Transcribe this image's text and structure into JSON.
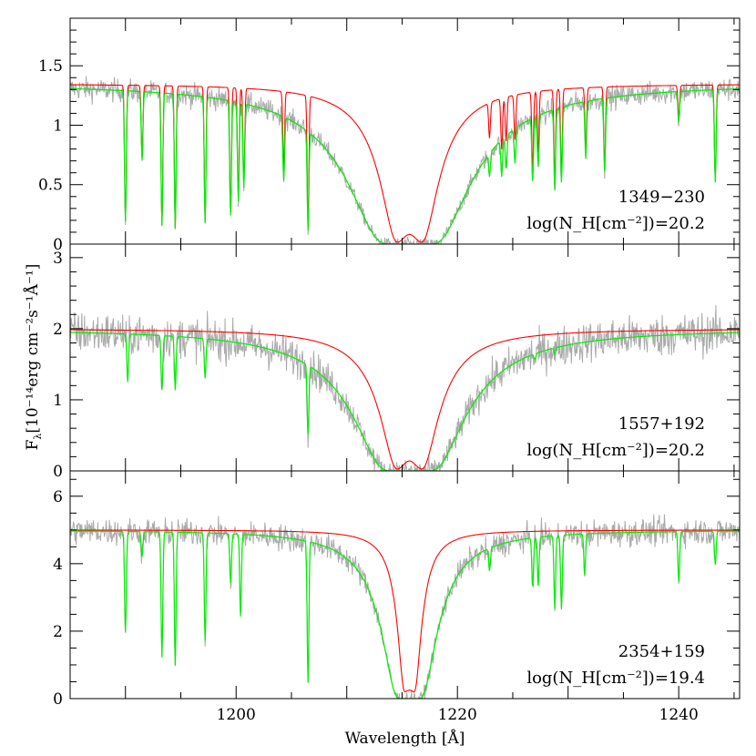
{
  "chart_data": {
    "type": "line",
    "xlabel": "Wavelength [Å]",
    "ylabel_parts": {
      "f": "F",
      "lam": "λ",
      "rest": "[10⁻¹⁴erg cm⁻²s⁻¹Å⁻¹]"
    },
    "xlim": [
      1185,
      1245.5
    ],
    "xticks": [
      1200,
      1220,
      1240
    ],
    "colors": {
      "data": "#aaaaaa",
      "model_red": "#ff0000",
      "model_green": "#00ee00"
    },
    "panels": [
      {
        "object": "1349−230",
        "label": "log(N_H[cm⁻²])=20.2",
        "label_parts": {
          "pre": "log(N",
          "sub": "H",
          "mid": "[cm",
          "sup": "-2",
          "post": "])=20.2"
        },
        "ylim": [
          0,
          1.9
        ],
        "yticks": [
          0,
          0.5,
          1,
          1.5
        ],
        "ytick_labels": [
          "0",
          "0.5",
          "1",
          "1.5"
        ],
        "yminor": 0.1,
        "continuum": 1.35,
        "noise": 0.05,
        "red_damping": 6.7,
        "green_damping": 30,
        "red_floor": 0.06,
        "red_has_lines": true,
        "lines": [
          [
            1190.0,
            0.85
          ],
          [
            1191.5,
            0.45
          ],
          [
            1193.3,
            0.88
          ],
          [
            1194.5,
            0.9
          ],
          [
            1197.2,
            0.86
          ],
          [
            1199.5,
            0.8
          ],
          [
            1200.2,
            0.7
          ],
          [
            1200.7,
            0.6
          ],
          [
            1204.3,
            0.5
          ],
          [
            1206.5,
            0.88
          ],
          [
            1222.9,
            0.25
          ],
          [
            1224.0,
            0.35
          ],
          [
            1224.4,
            0.3
          ],
          [
            1225.2,
            0.3
          ],
          [
            1226.8,
            0.5
          ],
          [
            1227.3,
            0.4
          ],
          [
            1228.8,
            0.6
          ],
          [
            1229.4,
            0.55
          ],
          [
            1231.6,
            0.4
          ],
          [
            1233.3,
            0.5
          ],
          [
            1240.0,
            0.2
          ],
          [
            1243.3,
            0.6
          ]
        ]
      },
      {
        "object": "1557+192",
        "label": "log(N_H[cm⁻²])=20.2",
        "label_parts": {
          "pre": "log(N",
          "sub": "H",
          "mid": "[cm",
          "sup": "-2",
          "post": "])=20.2"
        },
        "ylim": [
          0,
          3.19
        ],
        "yticks": [
          0,
          1,
          2,
          3
        ],
        "ytick_labels": [
          "0",
          "1",
          "2",
          "3"
        ],
        "yminor": 0.2,
        "continuum": 2.0,
        "noise": 0.15,
        "red_damping": 6.7,
        "green_damping": 25,
        "red_floor": 0.07,
        "red_has_lines": false,
        "lines": [
          [
            1190.2,
            0.35
          ],
          [
            1193.3,
            0.4
          ],
          [
            1194.5,
            0.4
          ],
          [
            1197.2,
            0.3
          ],
          [
            1206.5,
            0.65
          ],
          [
            1227.0,
            0.05
          ],
          [
            1228.8,
            0.05
          ]
        ]
      },
      {
        "object": "2354+159",
        "label": "log(N_H[cm⁻²])=19.4",
        "label_parts": {
          "pre": "log(N",
          "sub": "H",
          "mid": "[cm",
          "sup": "-2",
          "post": "])=19.4"
        },
        "ylim": [
          0,
          6.75
        ],
        "yticks": [
          0,
          2,
          4,
          6
        ],
        "ytick_labels": [
          "0",
          "2",
          "4",
          "6"
        ],
        "yminor": 0.5,
        "continuum": 5.0,
        "noise": 0.2,
        "red_damping": 1.06,
        "green_damping": 6,
        "red_floor": 0.05,
        "red_has_lines": false,
        "lines": [
          [
            1190.0,
            0.6
          ],
          [
            1191.5,
            0.15
          ],
          [
            1193.3,
            0.75
          ],
          [
            1194.5,
            0.8
          ],
          [
            1197.2,
            0.65
          ],
          [
            1199.5,
            0.3
          ],
          [
            1200.4,
            0.5
          ],
          [
            1206.5,
            0.9
          ],
          [
            1222.9,
            0.15
          ],
          [
            1226.8,
            0.3
          ],
          [
            1227.3,
            0.3
          ],
          [
            1228.8,
            0.45
          ],
          [
            1229.4,
            0.45
          ],
          [
            1231.5,
            0.25
          ],
          [
            1240.0,
            0.3
          ],
          [
            1243.3,
            0.2
          ]
        ]
      }
    ]
  }
}
